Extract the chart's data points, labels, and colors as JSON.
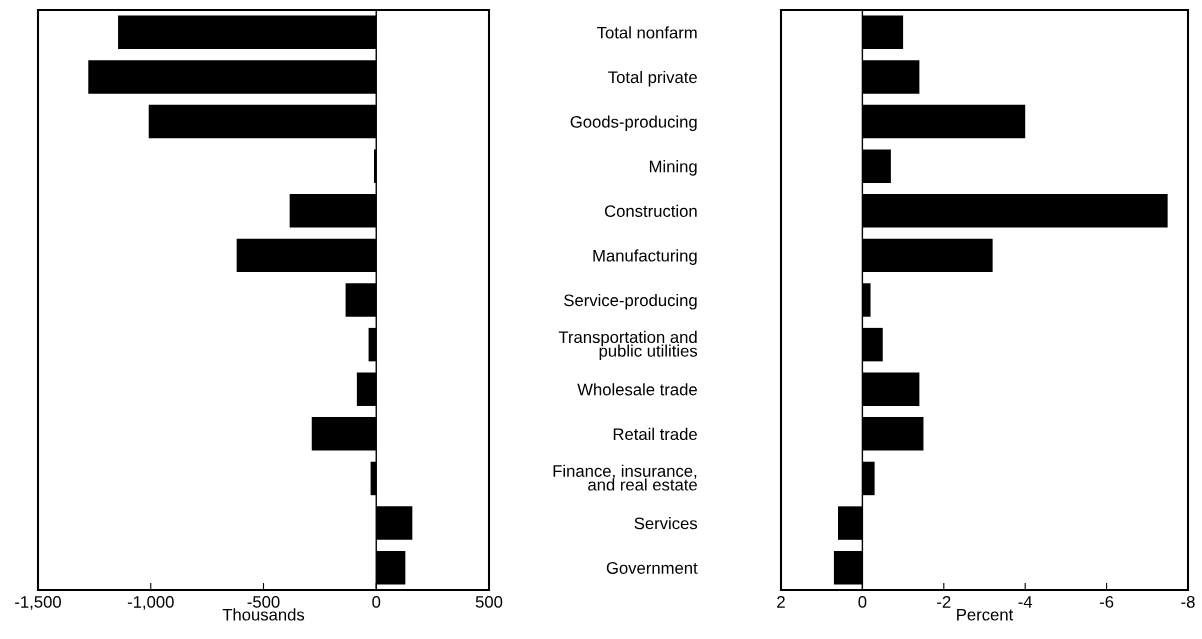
{
  "chart_data": [
    {
      "type": "bar",
      "orientation": "horizontal",
      "xlabel": "Thousands",
      "tick_labels": "x",
      "categories": [
        null,
        null,
        null,
        null,
        null,
        null,
        null,
        null,
        null,
        null,
        null,
        null,
        null
      ],
      "values": [
        -1145,
        -1277,
        -1009,
        -10,
        -384,
        -619,
        -136,
        -34,
        -86,
        -286,
        -25,
        160,
        129
      ],
      "color": "#000000",
      "xlim": [
        -1500,
        500
      ],
      "xticks": [
        {
          "value": -1500,
          "label": "-1,500"
        },
        {
          "value": -1000,
          "label": "-1,000"
        },
        {
          "value": -500,
          "label": "-500"
        },
        0,
        500
      ],
      "ref_lines": [
        {
          "axis": "x",
          "value": 0
        }
      ],
      "grid": false,
      "legend": false
    },
    {
      "type": "bar",
      "orientation": "horizontal",
      "xlabel": "Percent",
      "categories": [
        "Total nonfarm",
        "Total private",
        "Goods-producing",
        "Mining",
        "Construction",
        "Manufacturing",
        "Service-producing",
        "Transportation and\npublic utilities",
        "Wholesale trade",
        "Retail trade",
        "Finance, insurance,\nand real estate",
        "Services",
        "Government"
      ],
      "values": [
        -1.0,
        -1.4,
        -4.0,
        -0.7,
        -7.5,
        -3.2,
        -0.2,
        -0.5,
        -1.4,
        -1.5,
        -0.3,
        0.6,
        0.7
      ],
      "color": "#000000",
      "xlim": [
        2,
        -8
      ],
      "xticks": [
        2,
        0,
        -2,
        -4,
        -6,
        -8
      ],
      "ref_lines": [
        {
          "axis": "x",
          "value": 0
        }
      ],
      "grid": false,
      "legend": false
    }
  ]
}
